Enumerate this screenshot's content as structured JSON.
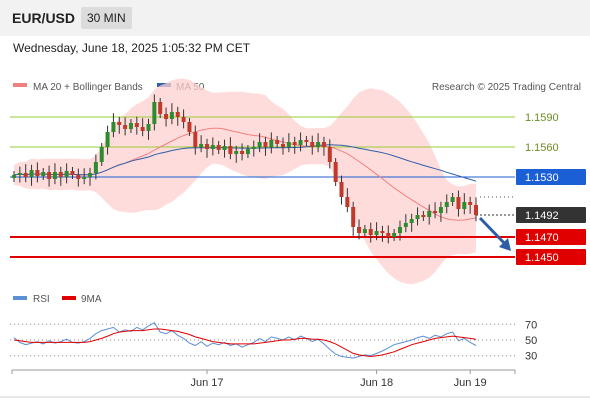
{
  "header": {
    "symbol": "EUR/USD",
    "timeframe": "30 MIN",
    "datetime": "Wednesday, June 18, 2025 1:05:32 PM CET"
  },
  "colors": {
    "bollinger": "#ffd0d0",
    "ma20": "#f08080",
    "ma50": "#2f5fa8",
    "resistance": "#9acd32",
    "pivot": "#1a5fd6",
    "support": "#e00000",
    "current": "#333333",
    "rsi": "#5b8fd6",
    "rsi_ma": "#e00000",
    "arrow": "#2b5da8",
    "candle_up": "#2e8b2e",
    "candle_down": "#c0392b"
  },
  "chart_data": [
    {
      "type": "candlestick",
      "legend": [
        {
          "label": "MA 20 + Bollinger Bands",
          "color": "#f08080"
        },
        {
          "label": "MA 50",
          "color": "#2f5fa8"
        }
      ],
      "source_note": "Research © 2025 Trading Central",
      "ylim": [
        1.1427,
        1.1612
      ],
      "x_ticks": [
        {
          "label": "Jun 17",
          "index": 33
        },
        {
          "label": "Jun 18",
          "index": 62
        },
        {
          "label": "Jun 19",
          "index": 78
        }
      ],
      "levels": [
        {
          "value": 1.159,
          "label": "1.1590",
          "kind": "resistance"
        },
        {
          "value": 1.156,
          "label": "1.1560",
          "kind": "resistance"
        },
        {
          "value": 1.153,
          "label": "1.1530",
          "kind": "pivot"
        },
        {
          "value": 1.1492,
          "label": "1.1492",
          "kind": "current"
        },
        {
          "value": 1.147,
          "label": "1.1470",
          "kind": "support"
        },
        {
          "value": 1.145,
          "label": "1.1450",
          "kind": "support"
        }
      ],
      "arrow": {
        "from": 1.1492,
        "to": 1.1452,
        "direction": "down"
      },
      "close": [
        1.1532,
        1.1534,
        1.153,
        1.1537,
        1.1531,
        1.1535,
        1.1528,
        1.1535,
        1.153,
        1.1536,
        1.1532,
        1.1528,
        1.153,
        1.1534,
        1.1545,
        1.156,
        1.1575,
        1.1585,
        1.1582,
        1.1578,
        1.1584,
        1.158,
        1.1576,
        1.1583,
        1.1605,
        1.1593,
        1.1588,
        1.1595,
        1.159,
        1.1585,
        1.1575,
        1.156,
        1.1563,
        1.1558,
        1.1562,
        1.1557,
        1.1561,
        1.1553,
        1.1556,
        1.1553,
        1.1558,
        1.156,
        1.1565,
        1.156,
        1.1567,
        1.1563,
        1.156,
        1.1565,
        1.1562,
        1.1567,
        1.1565,
        1.156,
        1.1565,
        1.156,
        1.1545,
        1.1525,
        1.151,
        1.15,
        1.148,
        1.1474,
        1.1478,
        1.1472,
        1.1476,
        1.1474,
        1.147,
        1.1474,
        1.148,
        1.1484,
        1.1488,
        1.1492,
        1.149,
        1.1496,
        1.1494,
        1.15,
        1.1505,
        1.151,
        1.1498,
        1.1505,
        1.1502,
        1.1492
      ]
    },
    {
      "type": "line",
      "legend": [
        {
          "label": "RSI",
          "color": "#5b8fd6"
        },
        {
          "label": "9MA",
          "color": "#e00000"
        }
      ],
      "ylim": [
        22,
        78
      ],
      "y_ticks": [
        70,
        50,
        30
      ],
      "series": [
        {
          "name": "RSI",
          "values": [
            53,
            47,
            44,
            46,
            48,
            45,
            49,
            46,
            48,
            51,
            47,
            46,
            48,
            52,
            58,
            62,
            64,
            66,
            60,
            63,
            61,
            66,
            63,
            68,
            72,
            60,
            58,
            62,
            56,
            52,
            46,
            43,
            48,
            42,
            46,
            44,
            47,
            43,
            45,
            41,
            44,
            47,
            52,
            48,
            54,
            52,
            50,
            54,
            50,
            55,
            52,
            48,
            51,
            45,
            38,
            32,
            29,
            28,
            27,
            29,
            31,
            30,
            33,
            36,
            40,
            44,
            46,
            48,
            50,
            53,
            55,
            52,
            56,
            54,
            58,
            60,
            49,
            52,
            47,
            43
          ]
        },
        {
          "name": "9MA",
          "values": [
            50,
            49,
            48,
            47,
            47,
            47,
            47,
            47,
            47,
            47,
            47,
            47,
            47,
            48,
            50,
            52,
            55,
            58,
            60,
            61,
            62,
            62,
            62,
            63,
            64,
            64,
            63,
            62,
            61,
            59,
            57,
            54,
            52,
            50,
            48,
            47,
            46,
            45,
            45,
            45,
            45,
            45,
            46,
            47,
            48,
            49,
            50,
            50,
            51,
            52,
            52,
            51,
            51,
            50,
            48,
            45,
            41,
            37,
            33,
            31,
            30,
            29,
            30,
            31,
            33,
            35,
            38,
            41,
            44,
            46,
            48,
            50,
            52,
            53,
            54,
            55,
            54,
            53,
            52,
            51
          ]
        }
      ]
    }
  ]
}
